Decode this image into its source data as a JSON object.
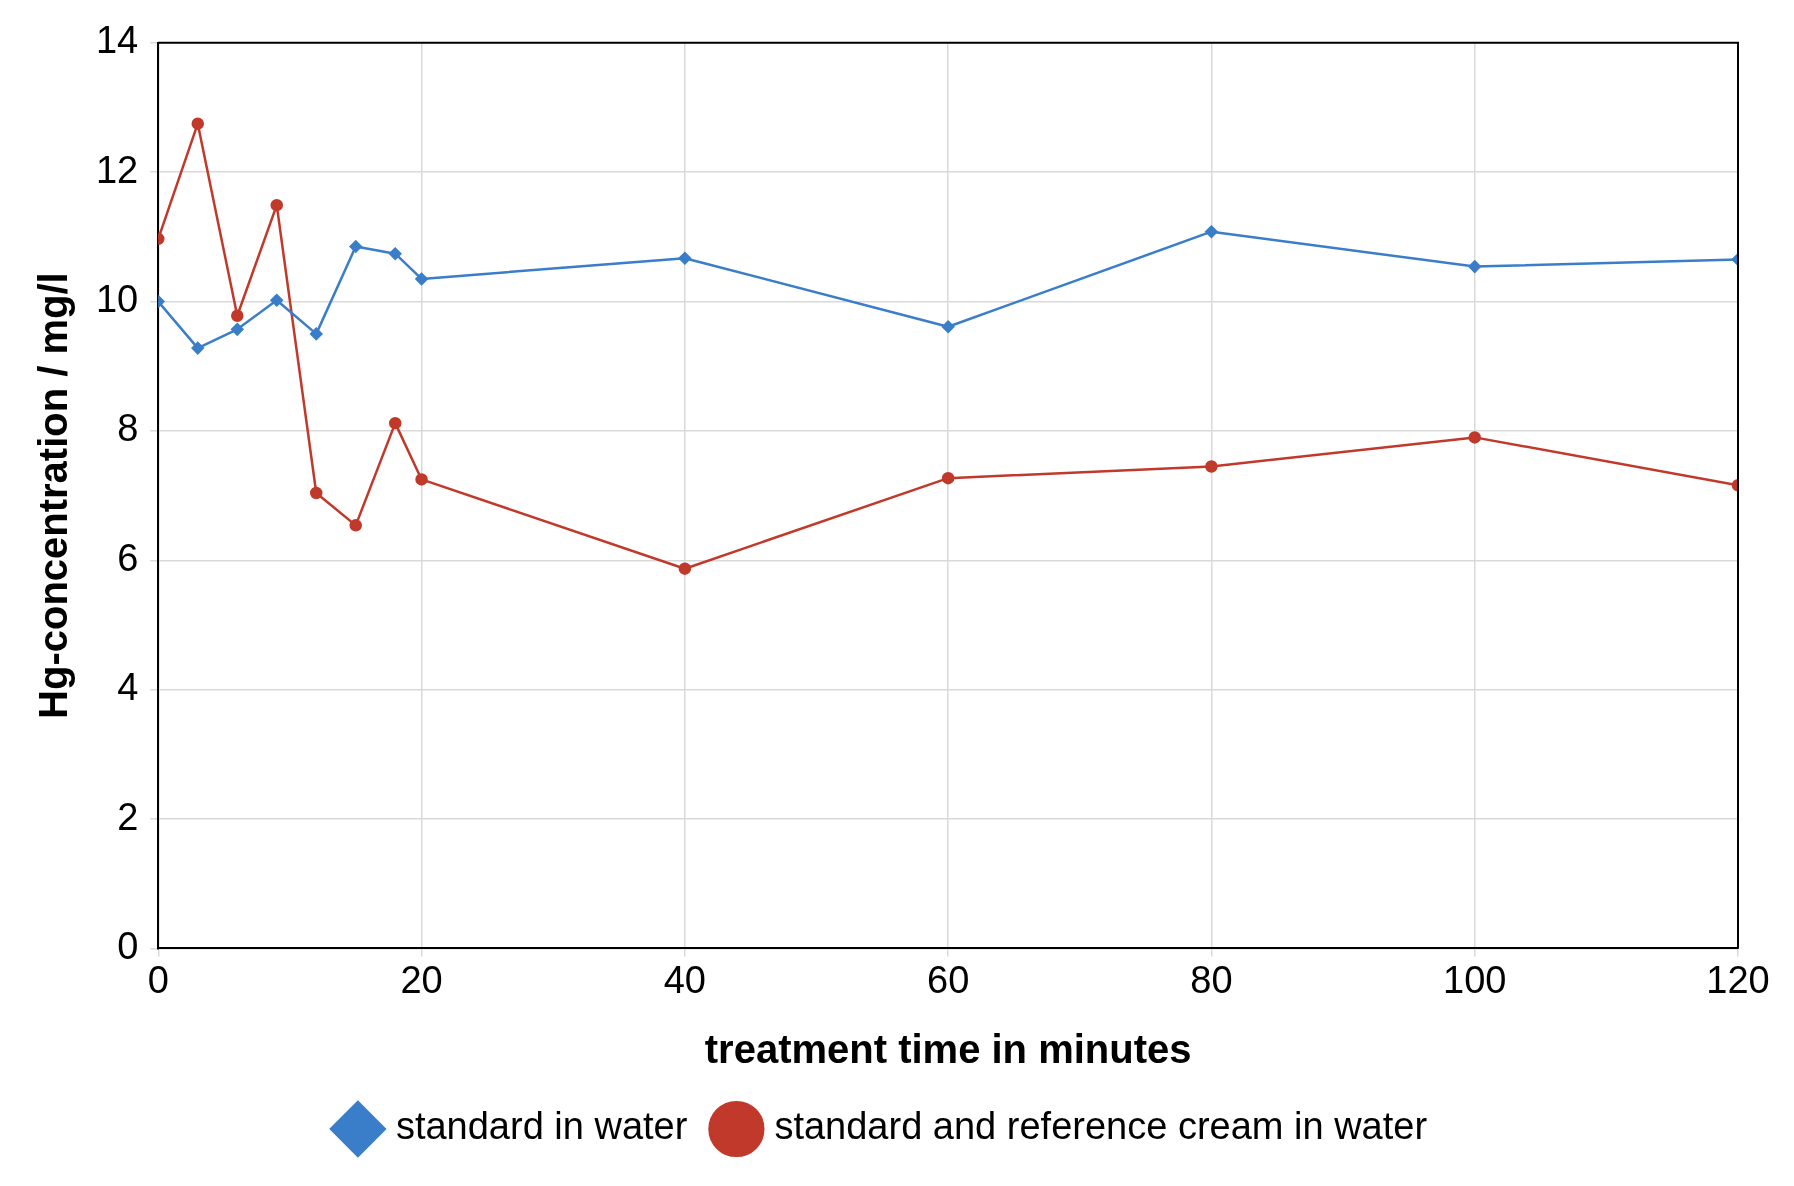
{
  "chart_data": {
    "type": "line",
    "xlabel": "treatment time in minutes",
    "ylabel": "Hg-concentration / mg/l",
    "xlim": [
      0,
      120
    ],
    "xticks": [
      0,
      20,
      40,
      60,
      80,
      100,
      120
    ],
    "ylim": [
      0,
      14
    ],
    "yticks": [
      0,
      2,
      4,
      6,
      8,
      10,
      12,
      14
    ],
    "grid": true,
    "legend": "bottom",
    "line_style": "solid",
    "x": [
      0,
      3,
      6,
      9,
      12,
      15,
      18,
      20,
      40,
      60,
      80,
      100,
      120
    ],
    "series": [
      {
        "name": "standard in water",
        "color": "#3a7dc9",
        "marker": "diamond",
        "values": [
          10.0,
          9.28,
          9.57,
          10.02,
          9.5,
          10.85,
          10.74,
          10.35,
          10.67,
          9.61,
          11.08,
          10.54,
          10.65
        ]
      },
      {
        "name": "standard and reference cream in water",
        "color": "#c0392b",
        "marker": "circle",
        "values": [
          10.97,
          12.75,
          9.78,
          11.49,
          7.04,
          6.54,
          8.12,
          7.25,
          5.87,
          7.27,
          7.45,
          7.9,
          7.16
        ]
      }
    ]
  }
}
